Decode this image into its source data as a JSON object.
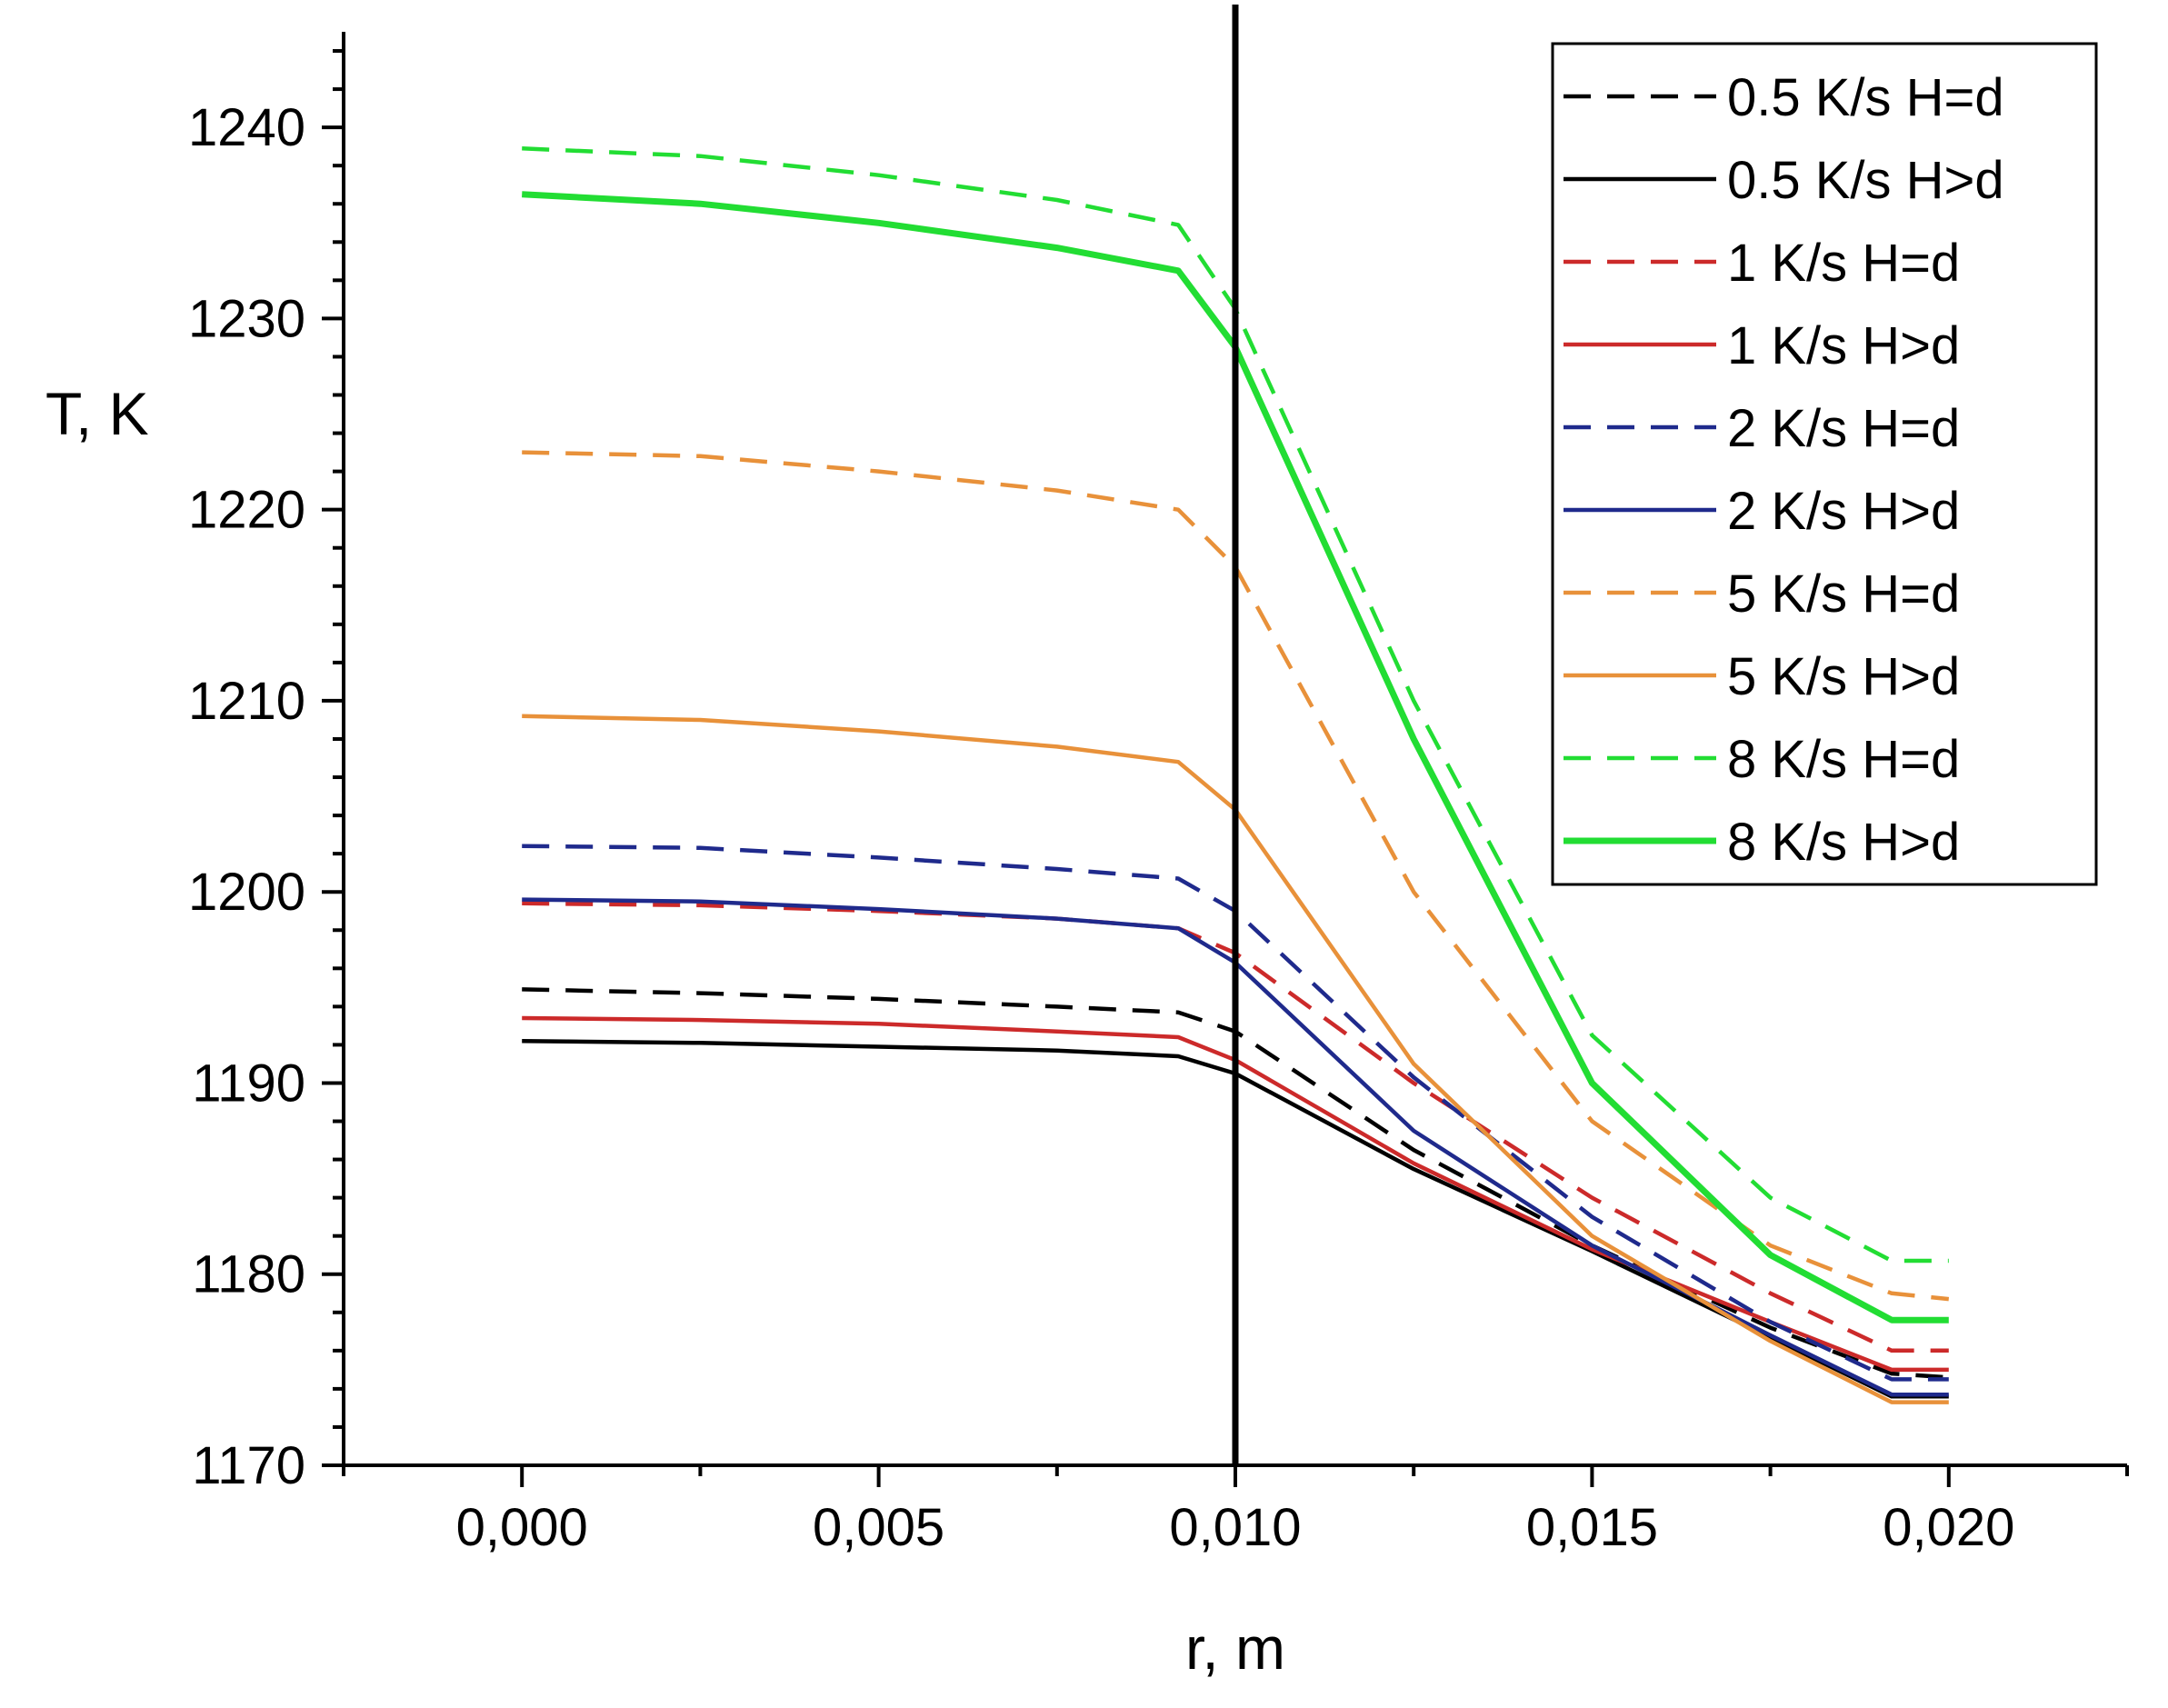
{
  "chart_data": {
    "type": "line",
    "title": "",
    "xlabel": "r, m",
    "ylabel": "T, K",
    "xlim": [
      -0.0025,
      0.0225
    ],
    "ylim": [
      1170,
      1245
    ],
    "x_ticks": [
      0.0,
      0.005,
      0.01,
      0.015,
      0.02
    ],
    "x_tick_labels": [
      "0,000",
      "0,005",
      "0,010",
      "0,015",
      "0,020"
    ],
    "y_ticks": [
      1170,
      1180,
      1190,
      1200,
      1210,
      1220,
      1230,
      1240
    ],
    "y_tick_labels": [
      "1170",
      "1180",
      "1190",
      "1200",
      "1210",
      "1220",
      "1230",
      "1240"
    ],
    "reference_line_x": 0.01,
    "legend_position": "top-right",
    "series": [
      {
        "name": "0.5 K/s H=d",
        "color": "#000000",
        "dash": "dashed",
        "width": "thin",
        "x": [
          0.0,
          0.0025,
          0.005,
          0.0075,
          0.0092,
          0.01,
          0.0125,
          0.015,
          0.0175,
          0.0192,
          0.02
        ],
        "y": [
          1194.9,
          1194.7,
          1194.4,
          1194.0,
          1193.7,
          1192.7,
          1186.5,
          1181.5,
          1177.2,
          1174.8,
          1174.6
        ]
      },
      {
        "name": "0.5 K/s H>d",
        "color": "#000000",
        "dash": "solid",
        "width": "thin",
        "x": [
          0.0,
          0.0025,
          0.005,
          0.0075,
          0.0092,
          0.01,
          0.0125,
          0.015,
          0.0175,
          0.0192,
          0.02
        ],
        "y": [
          1192.2,
          1192.1,
          1191.9,
          1191.7,
          1191.4,
          1190.5,
          1185.5,
          1181.2,
          1176.7,
          1173.6,
          1173.6
        ]
      },
      {
        "name": "1 K/s H=d",
        "color": "#cc2a2a",
        "dash": "dashed",
        "width": "thin",
        "x": [
          0.0,
          0.0025,
          0.005,
          0.0075,
          0.0092,
          0.01,
          0.0125,
          0.015,
          0.0175,
          0.0192,
          0.02
        ],
        "y": [
          1199.4,
          1199.3,
          1199.0,
          1198.6,
          1198.1,
          1196.8,
          1190.0,
          1184.0,
          1179.0,
          1176.0,
          1176.0
        ]
      },
      {
        "name": "1 K/s H>d",
        "color": "#cc2a2a",
        "dash": "solid",
        "width": "thin",
        "x": [
          0.0,
          0.0025,
          0.005,
          0.0075,
          0.0092,
          0.01,
          0.0125,
          0.015,
          0.0175,
          0.0192,
          0.02
        ],
        "y": [
          1193.4,
          1193.3,
          1193.1,
          1192.7,
          1192.4,
          1191.2,
          1185.8,
          1181.3,
          1177.5,
          1175.0,
          1175.0
        ]
      },
      {
        "name": "2 K/s H=d",
        "color": "#1f2a8c",
        "dash": "dashed",
        "width": "thin",
        "x": [
          0.0,
          0.0025,
          0.005,
          0.0075,
          0.0092,
          0.01,
          0.0125,
          0.015,
          0.0175,
          0.0192,
          0.02
        ],
        "y": [
          1202.4,
          1202.3,
          1201.8,
          1201.2,
          1200.7,
          1199.0,
          1190.3,
          1183.0,
          1177.5,
          1174.5,
          1174.5
        ]
      },
      {
        "name": "2 K/s H>d",
        "color": "#1f2a8c",
        "dash": "solid",
        "width": "thin",
        "x": [
          0.0,
          0.0025,
          0.005,
          0.0075,
          0.0092,
          0.01,
          0.0125,
          0.015,
          0.0175,
          0.0192,
          0.02
        ],
        "y": [
          1199.6,
          1199.5,
          1199.1,
          1198.6,
          1198.1,
          1196.3,
          1187.5,
          1181.5,
          1176.8,
          1173.7,
          1173.7
        ]
      },
      {
        "name": "5 K/s H=d",
        "color": "#e8913a",
        "dash": "dashed",
        "width": "thin",
        "x": [
          0.0,
          0.0025,
          0.005,
          0.0075,
          0.0092,
          0.01,
          0.0125,
          0.015,
          0.0175,
          0.0192,
          0.02
        ],
        "y": [
          1223.0,
          1222.8,
          1222.0,
          1221.0,
          1220.0,
          1217.0,
          1200.0,
          1188.0,
          1181.5,
          1179.0,
          1178.7
        ]
      },
      {
        "name": "5 K/s H>d",
        "color": "#e8913a",
        "dash": "solid",
        "width": "thin",
        "x": [
          0.0,
          0.0025,
          0.005,
          0.0075,
          0.0092,
          0.01,
          0.0125,
          0.015,
          0.0175,
          0.0192,
          0.02
        ],
        "y": [
          1209.2,
          1209.0,
          1208.4,
          1207.6,
          1206.8,
          1204.3,
          1191.0,
          1182.0,
          1176.5,
          1173.3,
          1173.3
        ]
      },
      {
        "name": "8 K/s H=d",
        "color": "#22dd33",
        "dash": "dashed",
        "width": "thin",
        "x": [
          0.0,
          0.0025,
          0.005,
          0.0075,
          0.0092,
          0.01,
          0.0125,
          0.015,
          0.0175,
          0.0192,
          0.02
        ],
        "y": [
          1238.9,
          1238.5,
          1237.5,
          1236.2,
          1234.9,
          1230.5,
          1210.0,
          1192.5,
          1184.0,
          1180.7,
          1180.7
        ]
      },
      {
        "name": "8 K/s H>d",
        "color": "#22dd33",
        "dash": "solid",
        "width": "thick",
        "x": [
          0.0,
          0.0025,
          0.005,
          0.0075,
          0.0092,
          0.01,
          0.0125,
          0.015,
          0.0175,
          0.0192,
          0.02
        ],
        "y": [
          1236.5,
          1236.0,
          1235.0,
          1233.7,
          1232.5,
          1228.5,
          1208.0,
          1190.0,
          1181.0,
          1177.6,
          1177.6
        ]
      }
    ]
  }
}
